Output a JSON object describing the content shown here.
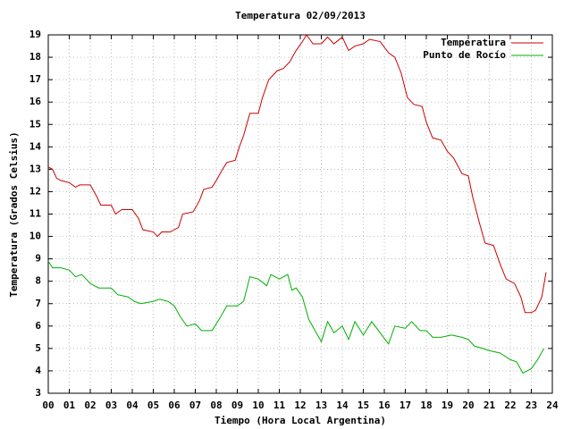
{
  "chart_data": {
    "type": "line",
    "title": "Temperatura 02/09/2013",
    "x_label": "Tiempo (Hora Local Argentina)",
    "y_label": "Temperatura (Grados Celsius)",
    "xlim": [
      0,
      24
    ],
    "ylim": [
      3,
      19
    ],
    "xticks": [
      {
        "value": 0,
        "label": "00"
      },
      {
        "value": 1,
        "label": "01"
      },
      {
        "value": 2,
        "label": "02"
      },
      {
        "value": 3,
        "label": "03"
      },
      {
        "value": 4,
        "label": "04"
      },
      {
        "value": 5,
        "label": "05"
      },
      {
        "value": 6,
        "label": "06"
      },
      {
        "value": 7,
        "label": "07"
      },
      {
        "value": 8,
        "label": "08"
      },
      {
        "value": 9,
        "label": "09"
      },
      10,
      11,
      12,
      13,
      14,
      15,
      16,
      17,
      18,
      19,
      20,
      21,
      22,
      23,
      24
    ],
    "yticks": [
      3,
      4,
      5,
      6,
      7,
      8,
      9,
      10,
      11,
      12,
      13,
      14,
      15,
      16,
      17,
      18,
      19
    ],
    "grid": true,
    "legend": "top-right",
    "series": [
      {
        "name": "Temperatura",
        "color": "#cc0000",
        "x": [
          0,
          0.2,
          0.4,
          0.6,
          1.0,
          1.3,
          1.5,
          2.0,
          2.3,
          2.5,
          3.0,
          3.2,
          3.5,
          4.0,
          4.3,
          4.5,
          5.0,
          5.2,
          5.4,
          5.8,
          6.2,
          6.4,
          6.9,
          7.2,
          7.4,
          7.8,
          8.0,
          8.3,
          8.5,
          8.9,
          9.1,
          9.3,
          9.6,
          10.0,
          10.2,
          10.5,
          10.9,
          11.2,
          11.5,
          11.8,
          12.1,
          12.3,
          12.6,
          13.0,
          13.3,
          13.6,
          14.0,
          14.3,
          14.6,
          15.0,
          15.3,
          15.8,
          16.2,
          16.5,
          16.8,
          17.1,
          17.4,
          17.8,
          18.0,
          18.3,
          18.7,
          19.0,
          19.3,
          19.7,
          20.0,
          20.2,
          20.5,
          20.8,
          21.2,
          21.5,
          21.8,
          22.2,
          22.5,
          22.7,
          23.0,
          23.2,
          23.5,
          23.7
        ],
        "values": [
          13.1,
          13.0,
          12.6,
          12.5,
          12.4,
          12.2,
          12.3,
          12.3,
          11.8,
          11.4,
          11.4,
          11.0,
          11.2,
          11.2,
          10.8,
          10.3,
          10.2,
          10.0,
          10.2,
          10.2,
          10.4,
          11.0,
          11.1,
          11.6,
          12.1,
          12.2,
          12.5,
          13.0,
          13.3,
          13.4,
          14.0,
          14.5,
          15.5,
          15.5,
          16.2,
          17.0,
          17.4,
          17.5,
          17.8,
          18.3,
          18.7,
          19.0,
          18.6,
          18.6,
          18.9,
          18.6,
          18.9,
          18.3,
          18.5,
          18.6,
          18.8,
          18.7,
          18.2,
          18.0,
          17.3,
          16.2,
          15.9,
          15.8,
          15.1,
          14.4,
          14.3,
          13.8,
          13.5,
          12.8,
          12.7,
          11.8,
          10.7,
          9.7,
          9.6,
          8.8,
          8.1,
          7.9,
          7.3,
          6.6,
          6.6,
          6.7,
          7.3,
          8.4
        ]
      },
      {
        "name": "Punto de Rocío",
        "color": "#00b000",
        "x": [
          0,
          0.2,
          0.6,
          1.0,
          1.3,
          1.6,
          2.0,
          2.4,
          3.0,
          3.3,
          3.8,
          4.1,
          4.4,
          5.0,
          5.3,
          5.7,
          6.0,
          6.3,
          6.6,
          7.0,
          7.3,
          7.8,
          8.2,
          8.5,
          9.0,
          9.3,
          9.6,
          10.0,
          10.4,
          10.6,
          11.0,
          11.4,
          11.6,
          11.8,
          12.1,
          12.4,
          12.7,
          13.0,
          13.3,
          13.6,
          14.0,
          14.3,
          14.6,
          15.0,
          15.4,
          15.8,
          16.2,
          16.5,
          17.0,
          17.3,
          17.7,
          18.0,
          18.3,
          18.7,
          19.2,
          19.7,
          20.0,
          20.3,
          20.7,
          21.0,
          21.5,
          22.0,
          22.3,
          22.6,
          23.0,
          23.3,
          23.6
        ],
        "values": [
          8.9,
          8.6,
          8.6,
          8.5,
          8.2,
          8.3,
          7.9,
          7.7,
          7.7,
          7.4,
          7.3,
          7.1,
          7.0,
          7.1,
          7.2,
          7.1,
          6.9,
          6.4,
          6.0,
          6.1,
          5.8,
          5.8,
          6.4,
          6.9,
          6.9,
          7.1,
          8.2,
          8.1,
          7.8,
          8.3,
          8.1,
          8.3,
          7.6,
          7.7,
          7.3,
          6.3,
          5.8,
          5.3,
          6.2,
          5.7,
          6.0,
          5.4,
          6.2,
          5.6,
          6.2,
          5.7,
          5.2,
          6.0,
          5.9,
          6.2,
          5.8,
          5.8,
          5.5,
          5.5,
          5.6,
          5.5,
          5.4,
          5.1,
          5.0,
          4.9,
          4.8,
          4.5,
          4.4,
          3.9,
          4.1,
          4.5,
          5.0
        ]
      }
    ]
  }
}
